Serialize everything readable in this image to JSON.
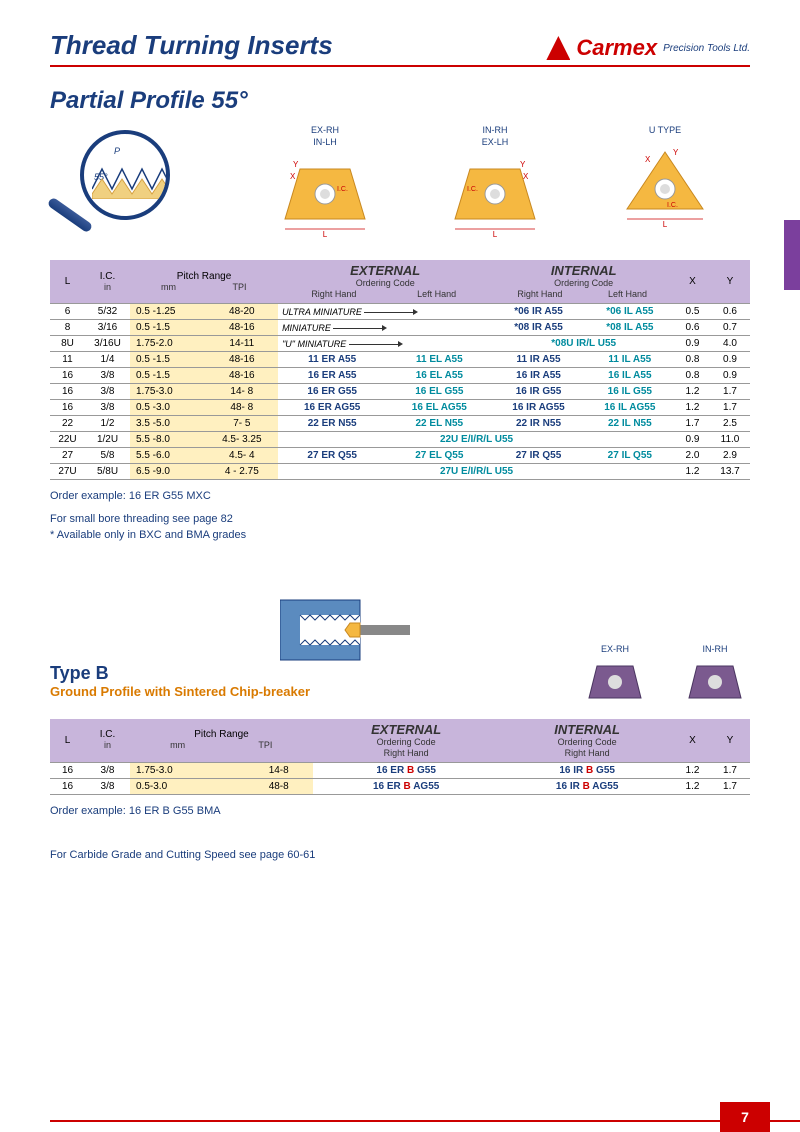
{
  "header": {
    "title": "Thread Turning Inserts",
    "brand": "Carmex",
    "brand_sub": "Precision Tools Ltd."
  },
  "section1": {
    "title": "Partial Profile 55°",
    "diagram_labels": {
      "d1_top": "EX-RH",
      "d1_bot": "IN-LH",
      "d2_top": "IN-RH",
      "d2_bot": "EX-LH",
      "d3": "U  TYPE",
      "ic": "I.C.",
      "l": "L",
      "x": "X",
      "y": "Y",
      "p": "P",
      "angle": "55°"
    }
  },
  "table1": {
    "headers": {
      "l": "L",
      "ic": "I.C.",
      "ic_sub": "in",
      "pitch": "Pitch Range",
      "mm": "mm",
      "tpi": "TPI",
      "ext": "EXTERNAL",
      "int": "INTERNAL",
      "ord": "Ordering Code",
      "rh": "Right Hand",
      "lh": "Left Hand",
      "x": "X",
      "y": "Y"
    },
    "rows": [
      {
        "l": "6",
        "ic": "5/32",
        "mm": "0.5 -1.25",
        "tpi": "48-20",
        "c1": "ULTRA MINIATURE",
        "arrow": true,
        "c3": "*06 IR A55",
        "c4": "*06 IL A55",
        "x": "0.5",
        "y": "0.6",
        "mini": true,
        "span2": true
      },
      {
        "l": "8",
        "ic": "3/16",
        "mm": "0.5 -1.5",
        "tpi": "48-16",
        "c1": "MINIATURE",
        "arrow": true,
        "c3": "*08 IR A55",
        "c4": "*08 IL A55",
        "x": "0.6",
        "y": "0.7",
        "mini": true,
        "span2": true
      },
      {
        "l": "8U",
        "ic": "3/16U",
        "mm": "1.75-2.0",
        "tpi": "14-11",
        "c1": "\"U\" MINIATURE",
        "arrow": true,
        "merged": "*08U IR/L U55",
        "x": "0.9",
        "y": "4.0",
        "mini": true,
        "span2": true,
        "mergedInt": true
      },
      {
        "l": "11",
        "ic": "1/4",
        "mm": "0.5 -1.5",
        "tpi": "48-16",
        "c1": "11 ER A55",
        "c2": "11 EL A55",
        "c3": "11 IR A55",
        "c4": "11 IL A55",
        "x": "0.8",
        "y": "0.9"
      },
      {
        "l": "16",
        "ic": "3/8",
        "mm": "0.5 -1.5",
        "tpi": "48-16",
        "c1": "16 ER A55",
        "c2": "16 EL A55",
        "c3": "16 IR A55",
        "c4": "16 IL A55",
        "x": "0.8",
        "y": "0.9"
      },
      {
        "l": "16",
        "ic": "3/8",
        "mm": "1.75-3.0",
        "tpi": "14- 8",
        "c1": "16 ER G55",
        "c2": "16 EL G55",
        "c3": "16 IR G55",
        "c4": "16 IL G55",
        "x": "1.2",
        "y": "1.7"
      },
      {
        "l": "16",
        "ic": "3/8",
        "mm": "0.5 -3.0",
        "tpi": "48- 8",
        "c1": "16 ER AG55",
        "c2": "16 EL AG55",
        "c3": "16 IR AG55",
        "c4": "16 IL AG55",
        "x": "1.2",
        "y": "1.7"
      },
      {
        "l": "22",
        "ic": "1/2",
        "mm": "3.5 -5.0",
        "tpi": "7- 5",
        "c1": "22 ER N55",
        "c2": "22 EL N55",
        "c3": "22 IR N55",
        "c4": "22 IL N55",
        "x": "1.7",
        "y": "2.5"
      },
      {
        "l": "22U",
        "ic": "1/2U",
        "mm": "5.5 -8.0",
        "tpi": "4.5- 3.25",
        "full": "22U E/I/R/L U55",
        "x": "0.9",
        "y": "11.0"
      },
      {
        "l": "27",
        "ic": "5/8",
        "mm": "5.5 -6.0",
        "tpi": "4.5- 4",
        "c1": "27 ER Q55",
        "c2": "27 EL Q55",
        "c3": "27 IR Q55",
        "c4": "27 IL Q55",
        "x": "2.0",
        "y": "2.9"
      },
      {
        "l": "27U",
        "ic": "5/8U",
        "mm": "6.5 -9.0",
        "tpi": "4 - 2.75",
        "full": "27U E/I/R/L U55",
        "x": "1.2",
        "y": "13.7"
      }
    ]
  },
  "notes1": {
    "line1": "Order example: 16 ER G55 MXC",
    "line2": "For small bore threading see page 82",
    "line3": "* Available only in BXC and BMA grades"
  },
  "section2": {
    "title": "Type B",
    "subtitle": "Ground Profile with Sintered Chip-breaker",
    "d1": "EX-RH",
    "d2": "IN-RH"
  },
  "table2": {
    "rows": [
      {
        "l": "16",
        "ic": "3/8",
        "mm": "1.75-3.0",
        "tpi": "14-8",
        "c1": "16 ER B G55",
        "c3": "16 IR B G55",
        "x": "1.2",
        "y": "1.7"
      },
      {
        "l": "16",
        "ic": "3/8",
        "mm": "0.5-3.0",
        "tpi": "48-8",
        "c1": "16 ER B AG55",
        "c3": "16 IR B AG55",
        "x": "1.2",
        "y": "1.7"
      }
    ]
  },
  "notes2": {
    "line1": "Order example: 16 ER B G55 BMA"
  },
  "footer_note": "For Carbide Grade and Cutting Speed see page 60-61",
  "page_number": "7",
  "colors": {
    "brand_red": "#c00020",
    "brand_blue": "#1a3d7c",
    "header_purple": "#c8b5db",
    "tab_purple": "#7b3f9d",
    "yellow": "#fff0c0",
    "orange": "#d97a00",
    "cyan": "#008b9e"
  }
}
